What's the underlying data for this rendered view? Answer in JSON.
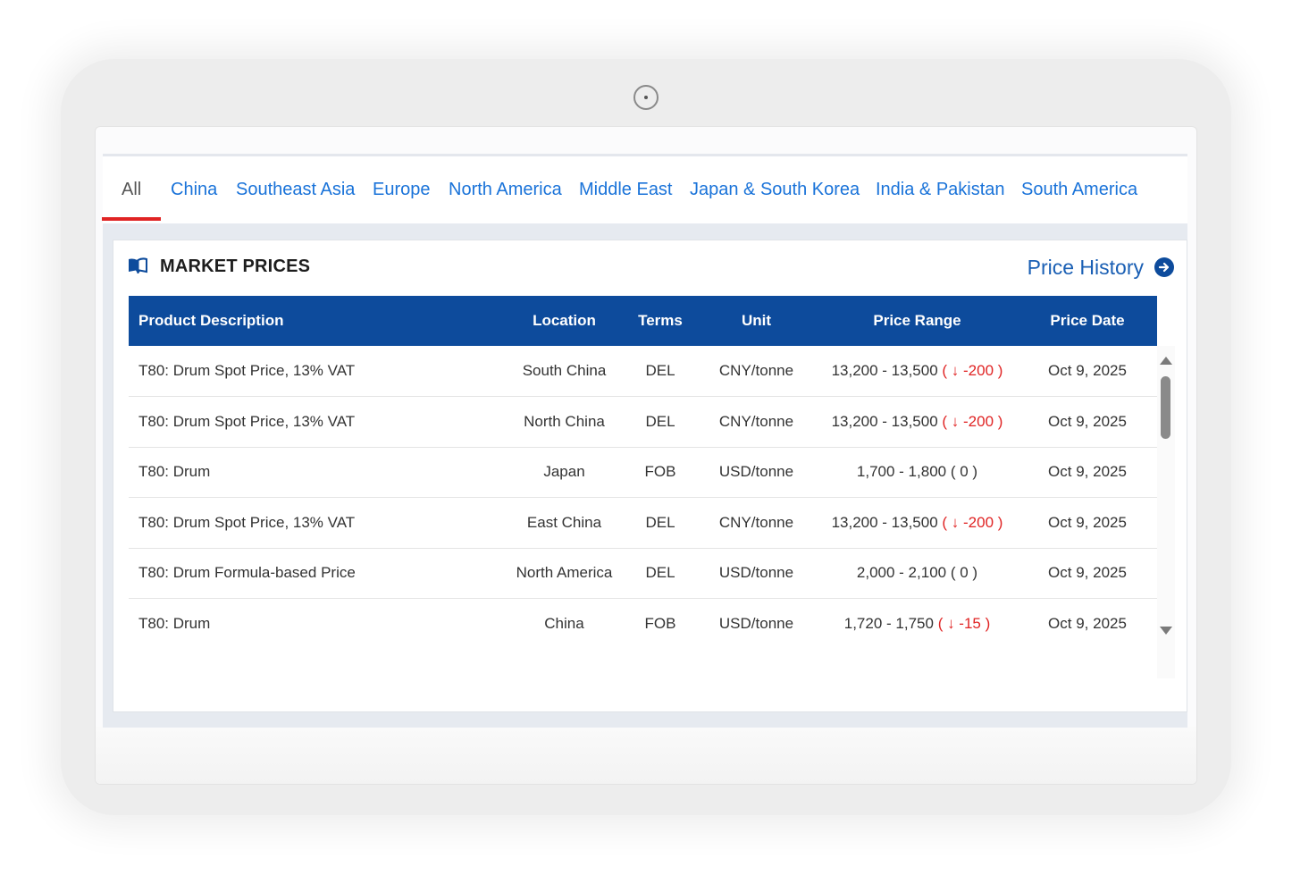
{
  "tabs": [
    {
      "label": "All",
      "active": true
    },
    {
      "label": "China"
    },
    {
      "label": "Southeast Asia"
    },
    {
      "label": "Europe"
    },
    {
      "label": "North America"
    },
    {
      "label": "Middle East"
    },
    {
      "label": "Japan & South Korea"
    },
    {
      "label": "India & Pakistan"
    },
    {
      "label": "South America"
    }
  ],
  "panel": {
    "title": "MARKET PRICES",
    "history_link": "Price History",
    "icons": {
      "title": "book-open-icon",
      "history": "arrow-right-circle-icon"
    }
  },
  "table": {
    "headers": [
      "Product Description",
      "Location",
      "Terms",
      "Unit",
      "Price Range",
      "Price Date"
    ],
    "rows": [
      {
        "product": "T80: Drum  Spot Price, 13% VAT",
        "location": "South China",
        "terms": "DEL",
        "unit": "CNY/tonne",
        "range": "13,200 - 13,500",
        "change": "( ↓ -200 )",
        "change_dir": "down",
        "date": "Oct 9, 2025"
      },
      {
        "product": "T80: Drum  Spot Price, 13% VAT",
        "location": "North China",
        "terms": "DEL",
        "unit": "CNY/tonne",
        "range": "13,200 - 13,500",
        "change": "( ↓ -200 )",
        "change_dir": "down",
        "date": "Oct 9, 2025"
      },
      {
        "product": "T80: Drum",
        "location": "Japan",
        "terms": "FOB",
        "unit": "USD/tonne",
        "range": "1,700 - 1,800",
        "change": "( 0 )",
        "change_dir": "flat",
        "date": "Oct 9, 2025"
      },
      {
        "product": "T80: Drum  Spot Price, 13% VAT",
        "location": "East China",
        "terms": "DEL",
        "unit": "CNY/tonne",
        "range": "13,200 - 13,500",
        "change": "( ↓ -200 )",
        "change_dir": "down",
        "date": "Oct 9, 2025"
      },
      {
        "product": "T80: Drum  Formula-based Price",
        "location": "North America",
        "terms": "DEL",
        "unit": "USD/tonne",
        "range": "2,000 - 2,100",
        "change": "( 0 )",
        "change_dir": "flat",
        "date": "Oct 9, 2025"
      },
      {
        "product": "T80: Drum",
        "location": "China",
        "terms": "FOB",
        "unit": "USD/tonne",
        "range": "1,720 - 1,750",
        "change": "( ↓ -15 )",
        "change_dir": "down",
        "date": "Oct 9, 2025"
      }
    ]
  },
  "colors": {
    "header_bg": "#0d4b9c",
    "tab_link": "#1a73d9",
    "tab_active_underline": "#e02424",
    "price_down": "#e02424",
    "link": "#1a5fb4"
  }
}
